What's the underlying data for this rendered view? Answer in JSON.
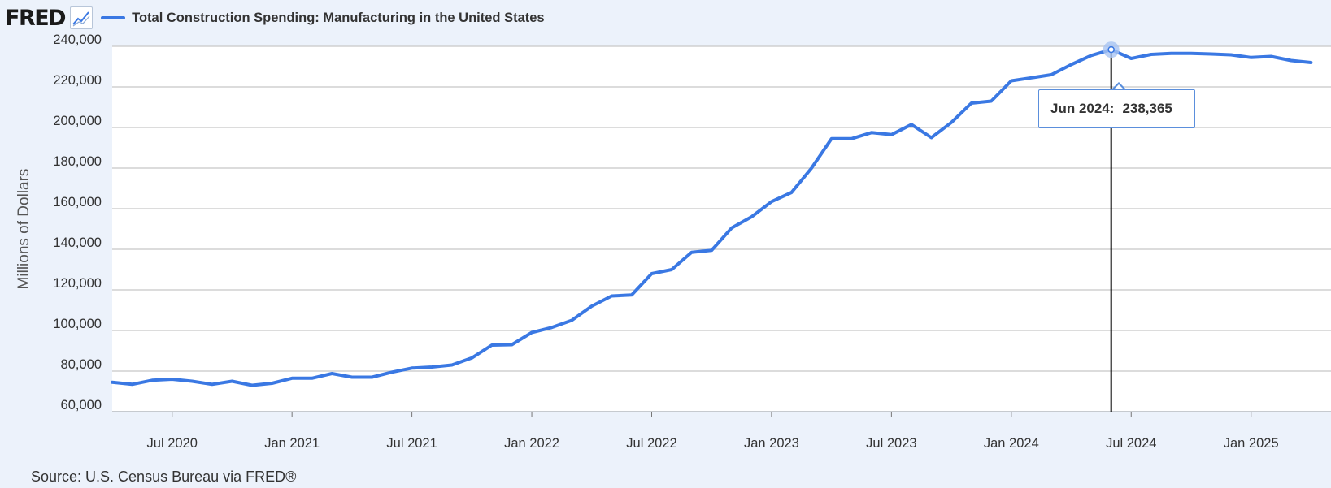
{
  "header": {
    "logo_text": "FRED",
    "logo_icon": "line-chart-icon"
  },
  "colors": {
    "series_line": "#3a78e3",
    "background": "#ecf2fb",
    "plot_background": "#ffffff",
    "grid": "#c8c8c8",
    "crosshair": "#000000",
    "highlight_marker": "#a9c4f2"
  },
  "tooltip": {
    "date_label": "Jun 2024:",
    "value_label": "238,365"
  },
  "source_note": "Source: U.S. Census Bureau via FRED®",
  "chart_data": {
    "type": "line",
    "title": "Total Construction Spending: Manufacturing in the United States",
    "xlabel": "",
    "ylabel": "Millions of Dollars",
    "ylim": [
      60000,
      240000
    ],
    "xlim": [
      "2020-04",
      "2025-05"
    ],
    "yticks": [
      60000,
      80000,
      100000,
      120000,
      140000,
      160000,
      180000,
      200000,
      220000,
      240000
    ],
    "ytick_labels": [
      "60,000",
      "80,000",
      "100,000",
      "120,000",
      "140,000",
      "160,000",
      "180,000",
      "200,000",
      "220,000",
      "240,000"
    ],
    "xticks": [
      "2020-07",
      "2021-01",
      "2021-07",
      "2022-01",
      "2022-07",
      "2023-01",
      "2023-07",
      "2024-01",
      "2024-07",
      "2025-01"
    ],
    "xtick_labels": [
      "Jul 2020",
      "Jan 2021",
      "Jul 2021",
      "Jan 2022",
      "Jul 2022",
      "Jan 2023",
      "Jul 2023",
      "Jan 2024",
      "Jul 2024",
      "Jan 2025"
    ],
    "grid": "horizontal",
    "highlight": {
      "x": "2024-06",
      "y": 238365
    },
    "series": [
      {
        "name": "Total Construction Spending: Manufacturing in the United States",
        "x": [
          "2020-04",
          "2020-05",
          "2020-06",
          "2020-07",
          "2020-08",
          "2020-09",
          "2020-10",
          "2020-11",
          "2020-12",
          "2021-01",
          "2021-02",
          "2021-03",
          "2021-04",
          "2021-05",
          "2021-06",
          "2021-07",
          "2021-08",
          "2021-09",
          "2021-10",
          "2021-11",
          "2021-12",
          "2022-01",
          "2022-02",
          "2022-03",
          "2022-04",
          "2022-05",
          "2022-06",
          "2022-07",
          "2022-08",
          "2022-09",
          "2022-10",
          "2022-11",
          "2022-12",
          "2023-01",
          "2023-02",
          "2023-03",
          "2023-04",
          "2023-05",
          "2023-06",
          "2023-07",
          "2023-08",
          "2023-09",
          "2023-10",
          "2023-11",
          "2023-12",
          "2024-01",
          "2024-02",
          "2024-03",
          "2024-04",
          "2024-05",
          "2024-06",
          "2024-07",
          "2024-08",
          "2024-09",
          "2024-10",
          "2024-11",
          "2024-12",
          "2025-01",
          "2025-02",
          "2025-03",
          "2025-04"
        ],
        "values": [
          74500,
          73500,
          75500,
          76000,
          75000,
          73500,
          75000,
          73000,
          74000,
          76500,
          76500,
          78800,
          77000,
          77000,
          79500,
          81500,
          82000,
          83000,
          86500,
          92800,
          93000,
          99000,
          101500,
          105000,
          112000,
          117000,
          117500,
          128000,
          130000,
          138500,
          139500,
          150500,
          156000,
          163500,
          168000,
          180000,
          194500,
          194500,
          197500,
          196500,
          201500,
          195000,
          202500,
          212000,
          213000,
          223000,
          224500,
          226000,
          231000,
          235500,
          238365,
          234000,
          236000,
          236500,
          236500,
          236200,
          235800,
          234500,
          235000,
          233000,
          232000
        ]
      }
    ]
  }
}
